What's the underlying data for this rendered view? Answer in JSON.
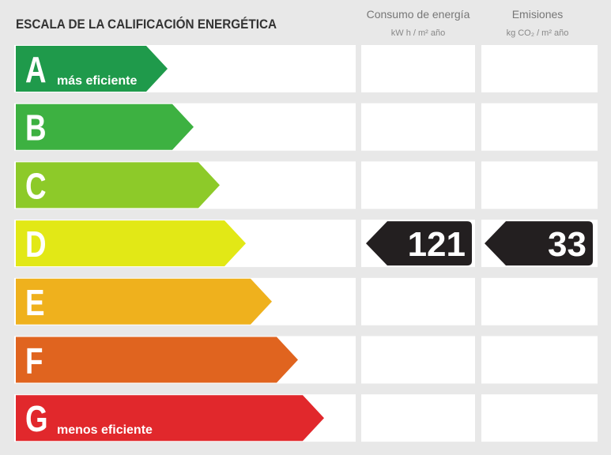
{
  "header": {
    "title": "ESCALA DE LA CALIFICACIÓN ENERGÉTICA",
    "columns": [
      {
        "title": "Consumo de energía",
        "unit": "kW h / m² año"
      },
      {
        "title": "Emisiones",
        "unit": "kg CO₂ / m² año"
      }
    ]
  },
  "rows": [
    {
      "letter": "A",
      "note": "más eficiente",
      "color": "#1f9a4b"
    },
    {
      "letter": "B",
      "color": "#3db141"
    },
    {
      "letter": "C",
      "color": "#8dca29"
    },
    {
      "letter": "D",
      "color": "#e2e816",
      "consumo": 121,
      "emisiones": 33
    },
    {
      "letter": "E",
      "color": "#efb11d"
    },
    {
      "letter": "F",
      "color": "#e0641f"
    },
    {
      "letter": "G",
      "note": "menos eficiente",
      "color": "#e1282c"
    }
  ]
}
